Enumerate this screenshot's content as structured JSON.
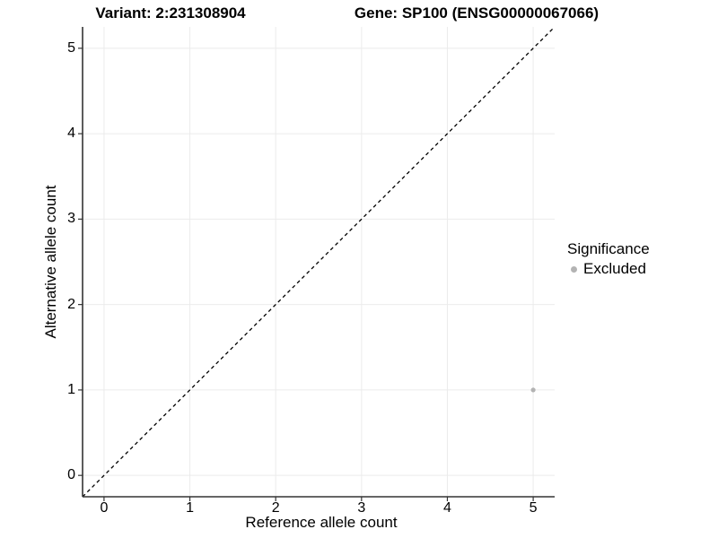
{
  "titles": {
    "variant": "Variant: 2:231308904",
    "gene": "Gene: SP100 (ENSG00000067066)"
  },
  "axes": {
    "x": {
      "label": "Reference allele count",
      "ticks": [
        "0",
        "1",
        "2",
        "3",
        "4",
        "5"
      ]
    },
    "y": {
      "label": "Alternative allele count",
      "ticks": [
        "0",
        "1",
        "2",
        "3",
        "4",
        "5"
      ]
    }
  },
  "legend": {
    "title": "Significance",
    "entries": [
      {
        "label": "Excluded",
        "color": "#b3b3b3"
      }
    ]
  },
  "colors": {
    "background": "#ffffff",
    "grid": "#ebebeb",
    "axis": "#333333",
    "reference_line": "#000000",
    "point": "#b3b3b3"
  },
  "chart_data": {
    "type": "scatter",
    "title": "Variant: 2:231308904 | Gene: SP100 (ENSG00000067066)",
    "xlabel": "Reference allele count",
    "ylabel": "Alternative allele count",
    "xlim": [
      -0.25,
      5.25
    ],
    "ylim": [
      -0.25,
      5.25
    ],
    "xticks": [
      0,
      1,
      2,
      3,
      4,
      5
    ],
    "yticks": [
      0,
      1,
      2,
      3,
      4,
      5
    ],
    "grid": true,
    "legend_position": "right",
    "legend_title": "Significance",
    "series": [
      {
        "name": "Excluded",
        "color": "#b3b3b3",
        "points": [
          {
            "x": 5,
            "y": 1
          }
        ]
      }
    ],
    "reference_line": {
      "kind": "identity y=x",
      "style": "dashed",
      "color": "#000000"
    }
  }
}
